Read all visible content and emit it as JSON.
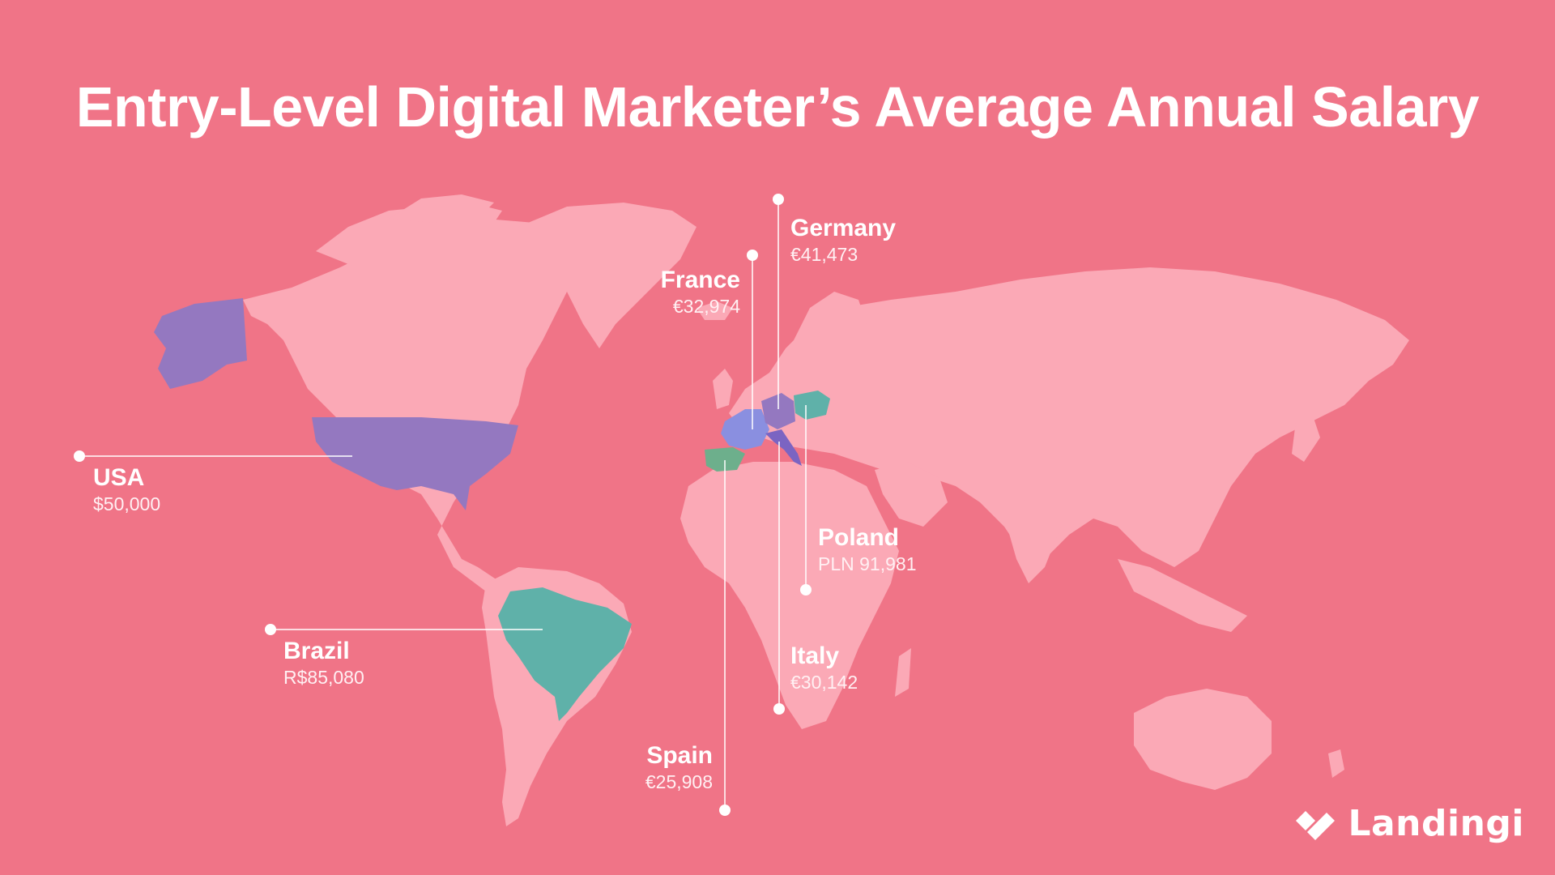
{
  "title": "Entry-Level Digital Marketer’s Average Annual Salary",
  "colors": {
    "background": "#f07487",
    "land": "#fba9b6",
    "purple": "#9478c0",
    "teal": "#5fb1a9",
    "periwinkle": "#8a8fe0",
    "violet": "#7b64c2",
    "green": "#6daf8c",
    "leader": "#ffffff"
  },
  "countries": [
    {
      "id": "usa",
      "name": "USA",
      "salary": "$50,000",
      "color": "purple"
    },
    {
      "id": "brazil",
      "name": "Brazil",
      "salary": "R$85,080",
      "color": "teal"
    },
    {
      "id": "france",
      "name": "France",
      "salary": "€32,974",
      "color": "periwinkle"
    },
    {
      "id": "germany",
      "name": "Germany",
      "salary": "€41,473",
      "color": "purple"
    },
    {
      "id": "poland",
      "name": "Poland",
      "salary": "PLN 91,981",
      "color": "teal"
    },
    {
      "id": "italy",
      "name": "Italy",
      "salary": "€30,142",
      "color": "violet"
    },
    {
      "id": "spain",
      "name": "Spain",
      "salary": "€25,908",
      "color": "green"
    }
  ],
  "brand": {
    "name": "Landingi",
    "icon": "landingi-logo-icon"
  }
}
